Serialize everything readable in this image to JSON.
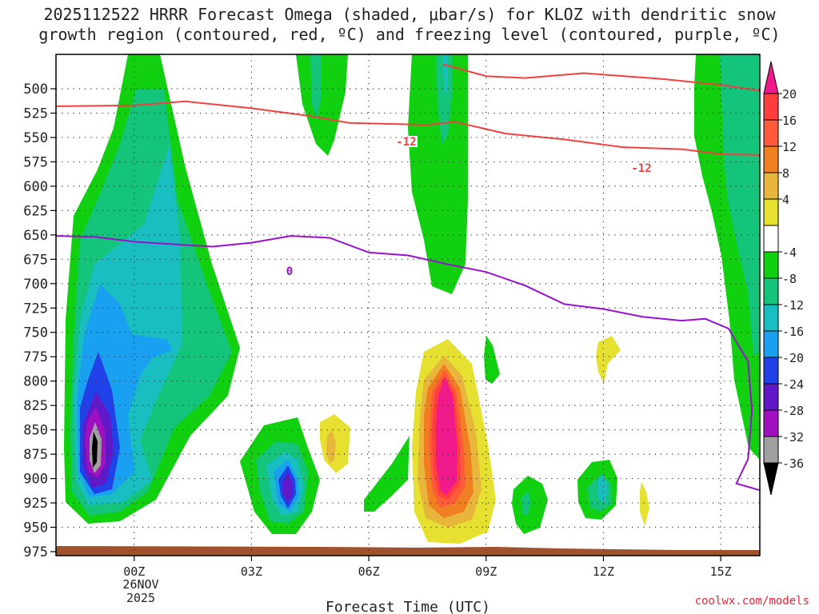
{
  "chart_data": {
    "type": "contour",
    "title": {
      "line1": "2025112522 HRRR Forecast Omega (shaded, μbar/s) for KLOZ with dendritic snow",
      "line2": "growth region (contoured, red, ºC) and freezing level (contoured, purple, ºC)"
    },
    "xlabel": "Forecast Time (UTC)",
    "date_label": [
      "26NOV",
      "2025"
    ],
    "x_range_hours_from_00z": [
      -2,
      16
    ],
    "x_ticks": [
      {
        "h": 0,
        "label": "00Z"
      },
      {
        "h": 3,
        "label": "03Z"
      },
      {
        "h": 6,
        "label": "06Z"
      },
      {
        "h": 9,
        "label": "09Z"
      },
      {
        "h": 12,
        "label": "12Z"
      },
      {
        "h": 15,
        "label": "15Z"
      }
    ],
    "y_range_mb": [
      980,
      475
    ],
    "y_ticks": [
      500,
      525,
      550,
      575,
      600,
      625,
      650,
      675,
      700,
      725,
      750,
      775,
      800,
      825,
      850,
      875,
      900,
      925,
      950,
      975
    ],
    "colorbar": {
      "levels": [
        20,
        16,
        12,
        8,
        4,
        -4,
        -8,
        -12,
        -16,
        -20,
        -24,
        -28,
        -32,
        -36
      ],
      "colors": [
        "#ff3d3d",
        "#ff5a3a",
        "#f07f22",
        "#e8b63b",
        "#e6e031",
        "#ffffff",
        "#10d010",
        "#14c47a",
        "#18bec0",
        "#1aa0f0",
        "#2040e8",
        "#6018c8",
        "#a010c0",
        "#a0a0a0"
      ],
      "top_arrow_color": "#f01a8c",
      "bottom_arrow_color": "#000000"
    },
    "contours": {
      "dgz_label": "-12",
      "freezing_label": "0",
      "dgz_line_mb": [
        [
          -2,
          518
        ],
        [
          0,
          517
        ],
        [
          1.3,
          513
        ],
        [
          3,
          520
        ],
        [
          4.5,
          528
        ],
        [
          5.5,
          535
        ],
        [
          7.5,
          537
        ],
        [
          8.2,
          534
        ],
        [
          9.5,
          546
        ],
        [
          11,
          552
        ],
        [
          12.5,
          560
        ],
        [
          14,
          562
        ],
        [
          15,
          567
        ],
        [
          16,
          568
        ]
      ],
      "dgz_upper_line_mb": [
        [
          7.9,
          475
        ],
        [
          9,
          487
        ],
        [
          10,
          489
        ],
        [
          11.5,
          484
        ],
        [
          13.5,
          490
        ],
        [
          15,
          496
        ],
        [
          16,
          502
        ]
      ],
      "freezing_line_mb": [
        [
          -2,
          651
        ],
        [
          -1,
          652
        ],
        [
          0,
          657
        ],
        [
          2,
          662
        ],
        [
          3,
          658
        ],
        [
          4,
          651
        ],
        [
          5,
          653
        ],
        [
          6,
          668
        ],
        [
          7,
          671
        ],
        [
          8,
          680
        ],
        [
          9,
          688
        ],
        [
          10,
          702
        ],
        [
          11,
          721
        ],
        [
          12,
          726
        ],
        [
          13,
          734
        ],
        [
          14,
          738
        ],
        [
          14.6,
          736
        ],
        [
          15.2,
          746
        ],
        [
          15.7,
          780
        ],
        [
          15.8,
          830
        ],
        [
          15.7,
          880
        ],
        [
          15.4,
          905
        ],
        [
          16,
          912
        ]
      ]
    },
    "shading": "Omega filled contours: strong ascent (negative, down to < -36) near 23Z 800-875 mb, ascent near 04Z 875-900 mb, strong descent (positive, > 20) near 08Z 775-900 mb, weaker cells elsewhere"
  },
  "footer": {
    "credit": "coolwx.com/models"
  }
}
